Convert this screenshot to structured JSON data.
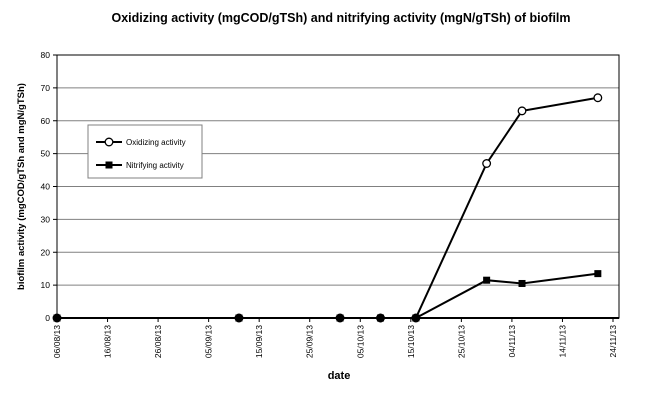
{
  "chart_data": {
    "type": "line",
    "title": "Oxidizing activity (mgCOD/gTSh) and nitrifying activity (mgN/gTSh) of biofilm",
    "xlabel": "date",
    "ylabel": "biofilm activity (mgCOD/gTSh and mgN/gTSh)",
    "ylim": [
      0,
      80
    ],
    "y_ticks": [
      0,
      10,
      20,
      30,
      40,
      50,
      60,
      70,
      80
    ],
    "x_tick_labels": [
      "06/08/13",
      "16/08/13",
      "26/08/13",
      "05/09/13",
      "15/09/13",
      "25/09/13",
      "05/10/13",
      "15/10/13",
      "25/10/13",
      "04/11/13",
      "14/11/13",
      "24/11/13"
    ],
    "categories": [
      "06/08/13",
      "11/09/13",
      "01/10/13",
      "09/10/13",
      "16/10/13",
      "30/10/13",
      "06/11/13",
      "21/11/13"
    ],
    "series": [
      {
        "name": "Oxidizing activity",
        "marker": "circle-open",
        "values": [
          0,
          0,
          0,
          0,
          0,
          47,
          63,
          67
        ]
      },
      {
        "name": "Nitrifying activity",
        "marker": "square-filled",
        "values": [
          0,
          0,
          0,
          0,
          0,
          11.5,
          10.5,
          13.5
        ]
      }
    ],
    "grid": "horizontal",
    "legend_position": "upper-left-inside",
    "colors": {
      "series": "#000000",
      "grid": "#808080",
      "background": "#ffffff"
    }
  }
}
